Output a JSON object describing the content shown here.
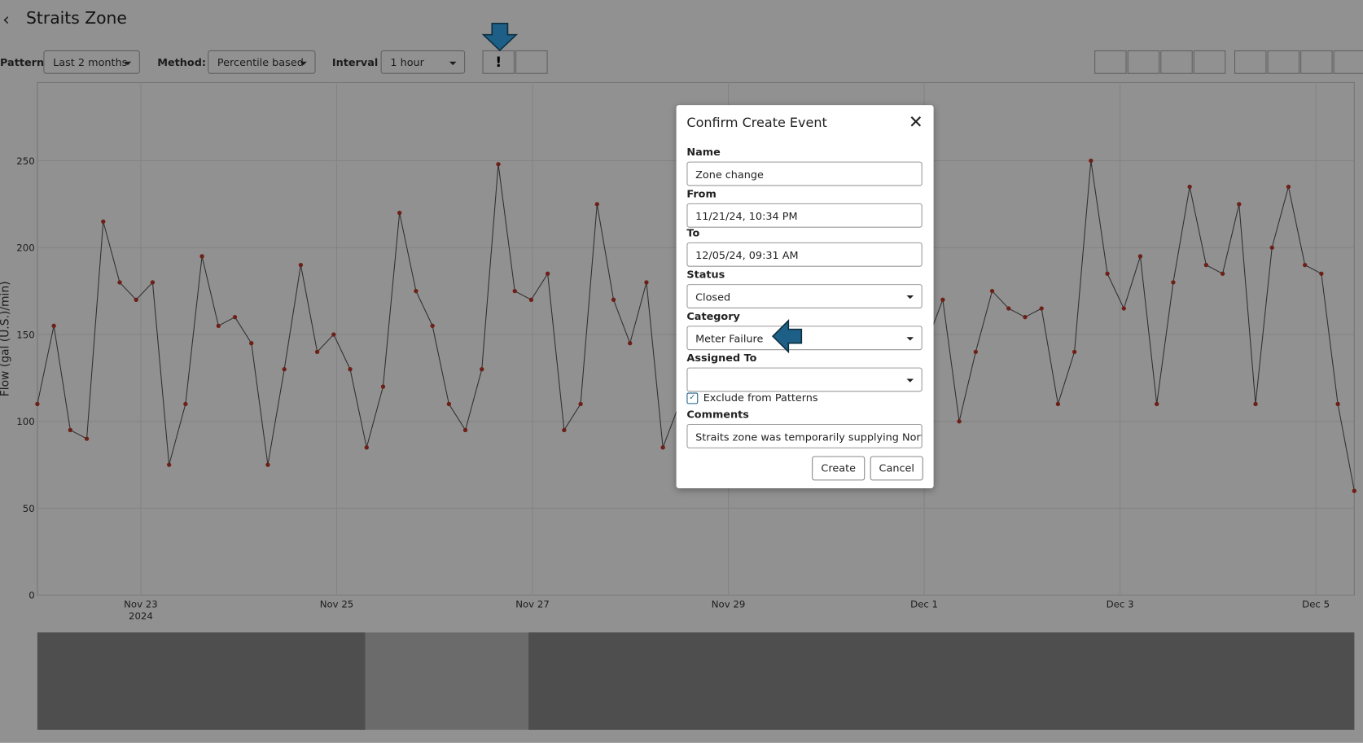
{
  "header": {
    "title": "Straits Zone"
  },
  "toolbar": {
    "pattern_label": "Pattern",
    "pattern_value": "Last 2 months",
    "method_label": "Method:",
    "method_value": "Percentile based",
    "interval_label": "Interval",
    "interval_value": "1 hour"
  },
  "chart_data": {
    "type": "line",
    "y_label": "Flow (gal (U.S.)/min)",
    "xticks": [
      "Nov 23",
      "Nov 25",
      "Nov 27",
      "Nov 29",
      "Dec 1",
      "Dec 3",
      "Dec 5"
    ],
    "year_label": "2024",
    "ylim": [
      0,
      295
    ],
    "yticks": [
      0,
      50,
      100,
      150,
      200,
      250
    ],
    "series": [
      {
        "name": "Flow",
        "color": "#555555",
        "point_color": "#c0392b",
        "values": [
          110,
          155,
          95,
          90,
          215,
          180,
          170,
          180,
          75,
          110,
          195,
          155,
          160,
          145,
          75,
          130,
          190,
          140,
          150,
          130,
          85,
          120,
          220,
          175,
          155,
          110,
          95,
          130,
          248,
          175,
          170,
          185,
          95,
          110,
          225,
          170,
          145,
          180,
          85,
          110,
          220,
          170,
          150,
          160,
          75,
          110,
          220,
          170,
          150,
          160,
          70,
          105,
          215,
          165,
          145,
          170,
          100,
          140,
          175,
          165,
          160,
          165,
          110,
          140,
          250,
          185,
          165,
          195,
          110,
          180,
          235,
          190,
          185,
          225,
          110,
          200,
          235,
          190,
          185,
          110,
          60
        ]
      }
    ]
  },
  "dialog": {
    "title": "Confirm Create Event",
    "fields": [
      {
        "label": "Name",
        "value": "Zone change"
      },
      {
        "label": "From",
        "value": "11/21/24, 10:34 PM"
      },
      {
        "label": "To",
        "value": "12/05/24, 09:31 AM"
      },
      {
        "label": "Status",
        "value": "Closed"
      },
      {
        "label": "Category",
        "value": "Meter Failure"
      },
      {
        "label": "Assigned To",
        "value": ""
      }
    ],
    "checkbox": "Exclude from Patterns",
    "comments_label": "Comments",
    "comments_value": "Straits zone was temporarily supplying Northern",
    "create": "Create",
    "cancel": "Cancel"
  }
}
